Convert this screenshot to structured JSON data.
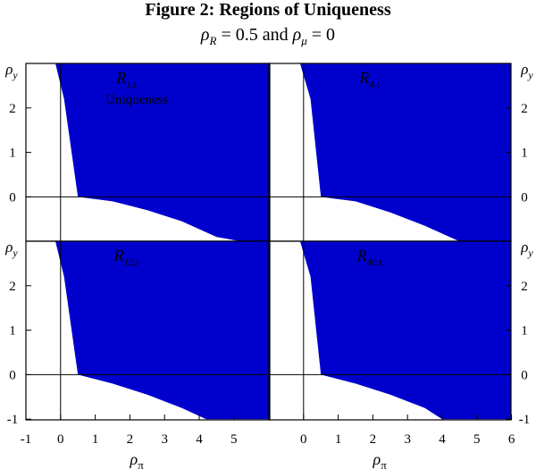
{
  "figure": {
    "title": "Figure 2: Regions of Uniqueness",
    "subtitle": "ρ_R = 0.5 and ρ_μ = 0"
  },
  "chart_data": [
    {
      "type": "area",
      "panel": "R1,t",
      "label_main": "R",
      "label_sub": "1,t",
      "annotation": "Uniqueness",
      "fill_color": "#0000cc",
      "xlim": [
        -1,
        6
      ],
      "ylim": [
        -1,
        3
      ],
      "ylabel": "ρ_y",
      "yticks": [
        2,
        1,
        0
      ],
      "boundary": [
        [
          -0.15,
          3
        ],
        [
          0.1,
          2.2
        ],
        [
          0.5,
          0.0
        ],
        [
          1.5,
          -0.1
        ],
        [
          2.5,
          -0.3
        ],
        [
          3.5,
          -0.55
        ],
        [
          4.5,
          -0.9
        ],
        [
          5.2,
          -1.0
        ]
      ]
    },
    {
      "type": "area",
      "panel": "R4,t",
      "label_main": "R",
      "label_sub": "4,t",
      "fill_color": "#0000cc",
      "xlim": [
        -1,
        6
      ],
      "ylim": [
        -1,
        3
      ],
      "ylabel": "ρ_y",
      "yticks": [
        2,
        1,
        0
      ],
      "boundary": [
        [
          -0.1,
          3
        ],
        [
          0.2,
          2.2
        ],
        [
          0.5,
          0.0
        ],
        [
          1.5,
          -0.1
        ],
        [
          2.5,
          -0.35
        ],
        [
          3.5,
          -0.65
        ],
        [
          4.5,
          -1.0
        ]
      ]
    },
    {
      "type": "area",
      "panel": "R12,t",
      "label_main": "R",
      "label_sub": "12,t",
      "fill_color": "#0000cc",
      "xlim": [
        -1,
        6
      ],
      "ylim": [
        -1,
        3
      ],
      "ylabel": "ρ_y",
      "yticks": [
        2,
        1,
        0,
        -1
      ],
      "xlabel": "ρ_π",
      "xticks": [
        -1,
        0,
        1,
        2,
        3,
        4,
        5
      ],
      "boundary": [
        [
          -0.15,
          3
        ],
        [
          0.1,
          2.2
        ],
        [
          0.5,
          0.0
        ],
        [
          1.5,
          -0.2
        ],
        [
          2.5,
          -0.45
        ],
        [
          3.5,
          -0.75
        ],
        [
          4.2,
          -1.0
        ]
      ]
    },
    {
      "type": "area",
      "panel": "R40,t",
      "label_main": "R",
      "label_sub": "40,t",
      "fill_color": "#0000cc",
      "xlim": [
        -1,
        6
      ],
      "ylim": [
        -1,
        3
      ],
      "ylabel": "ρ_y",
      "yticks": [
        2,
        1,
        0,
        -1
      ],
      "xlabel": "ρ_π",
      "xticks": [
        0,
        1,
        2,
        3,
        4,
        5,
        6
      ],
      "boundary": [
        [
          -0.1,
          3
        ],
        [
          0.2,
          2.2
        ],
        [
          0.5,
          0.0
        ],
        [
          1.5,
          -0.2
        ],
        [
          2.5,
          -0.45
        ],
        [
          3.5,
          -0.75
        ],
        [
          4.0,
          -1.0
        ]
      ]
    }
  ]
}
